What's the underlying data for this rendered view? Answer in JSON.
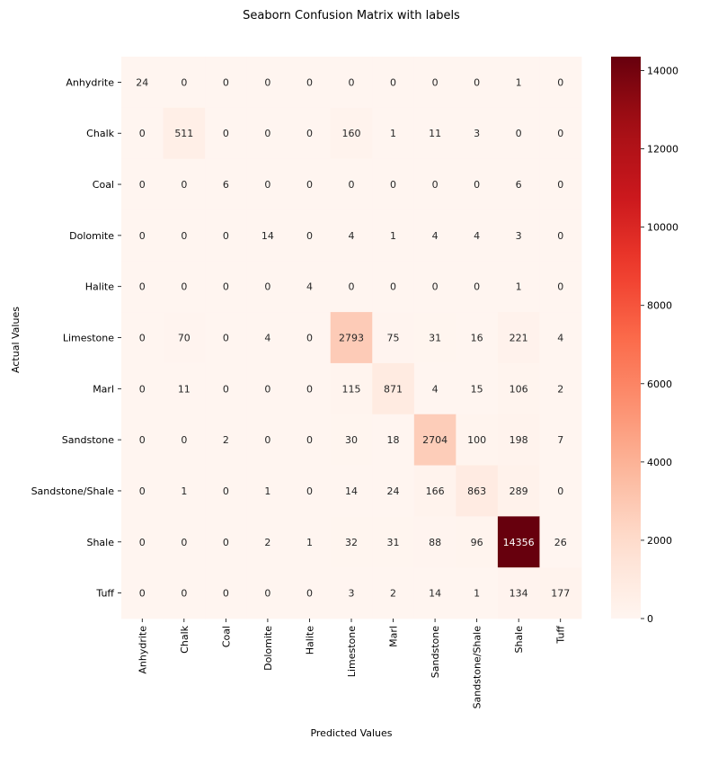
{
  "chart_data": {
    "type": "heatmap",
    "title": "Seaborn Confusion Matrix with labels",
    "xlabel": "Predicted Values",
    "ylabel": "Actual Values",
    "x_categories": [
      "Anhydrite",
      "Chalk",
      "Coal",
      "Dolomite",
      "Halite",
      "Limestone",
      "Marl",
      "Sandstone",
      "Sandstone/Shale",
      "Shale",
      "Tuff"
    ],
    "y_categories": [
      "Anhydrite",
      "Chalk",
      "Coal",
      "Dolomite",
      "Halite",
      "Limestone",
      "Marl",
      "Sandstone",
      "Sandstone/Shale",
      "Shale",
      "Tuff"
    ],
    "values": [
      [
        24,
        0,
        0,
        0,
        0,
        0,
        0,
        0,
        0,
        1,
        0
      ],
      [
        0,
        511,
        0,
        0,
        0,
        160,
        1,
        11,
        3,
        0,
        0
      ],
      [
        0,
        0,
        6,
        0,
        0,
        0,
        0,
        0,
        0,
        6,
        0
      ],
      [
        0,
        0,
        0,
        14,
        0,
        4,
        1,
        4,
        4,
        3,
        0
      ],
      [
        0,
        0,
        0,
        0,
        4,
        0,
        0,
        0,
        0,
        1,
        0
      ],
      [
        0,
        70,
        0,
        4,
        0,
        2793,
        75,
        31,
        16,
        221,
        4
      ],
      [
        0,
        11,
        0,
        0,
        0,
        115,
        871,
        4,
        15,
        106,
        2
      ],
      [
        0,
        0,
        2,
        0,
        0,
        30,
        18,
        2704,
        100,
        198,
        7
      ],
      [
        0,
        1,
        0,
        1,
        0,
        14,
        24,
        166,
        863,
        289,
        0
      ],
      [
        0,
        0,
        0,
        2,
        1,
        32,
        31,
        88,
        96,
        14356,
        26
      ],
      [
        0,
        0,
        0,
        0,
        0,
        3,
        2,
        14,
        1,
        134,
        177
      ]
    ],
    "colormap": "Reds",
    "colorbar": {
      "ticks": [
        0,
        2000,
        4000,
        6000,
        8000,
        10000,
        12000,
        14000
      ],
      "range": [
        0,
        14356
      ]
    },
    "grid": false,
    "legend": "colorbar-right"
  }
}
